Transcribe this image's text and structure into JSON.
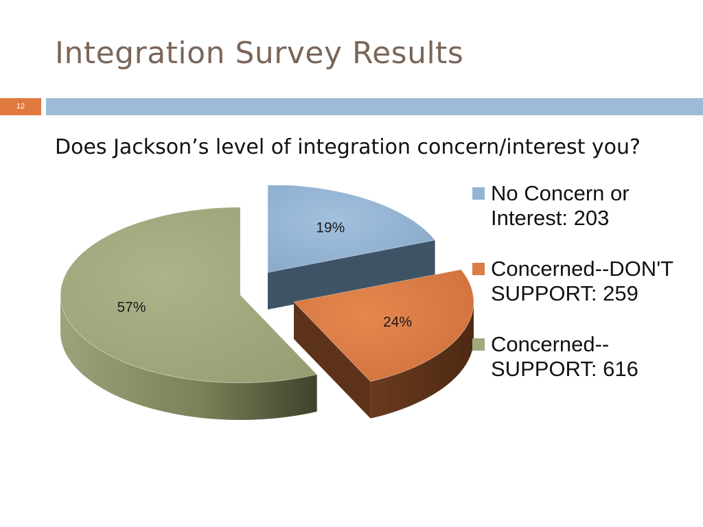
{
  "slide": {
    "title": "Integration Survey Results",
    "number": "12",
    "question": "Does Jackson’s level of integration concern/interest you?"
  },
  "colors": {
    "title": "#7a6658",
    "accent_orange": "#e07a3e",
    "accent_blue_bar": "#9dbbd8"
  },
  "chart_data": {
    "type": "pie",
    "style": "3d-exploded",
    "legend_position": "right",
    "slices": [
      {
        "name": "No Concern or Interest",
        "count": 203,
        "percent": 19,
        "pct_label": "19%",
        "legend_label": "No Concern or Interest: 203",
        "color": "#93b3d4",
        "side_color": "#3f5366"
      },
      {
        "name": "Concerned--DON'T SUPPORT",
        "count": 259,
        "percent": 24,
        "pct_label": "24%",
        "legend_label": "Concerned--DON'T SUPPORT: 259",
        "color": "#dc7c45",
        "side_color": "#5d321a"
      },
      {
        "name": "Concerned--SUPPORT",
        "count": 616,
        "percent": 57,
        "pct_label": "57%",
        "legend_label": "Concerned--SUPPORT: 616",
        "color": "#a1aa7f",
        "side_color": "#59603f"
      }
    ]
  }
}
